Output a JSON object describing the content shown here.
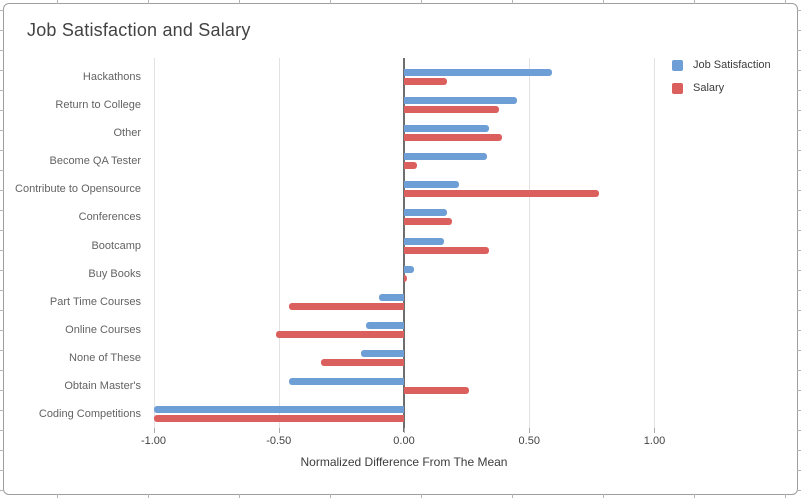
{
  "chart_data": {
    "type": "bar",
    "orientation": "horizontal",
    "title": "Job Satisfaction and Salary",
    "xlabel": "Normalized Difference From The Mean",
    "categories": [
      "Hackathons",
      "Return to College",
      "Other",
      "Become QA Tester",
      "Contribute to Opensource",
      "Conferences",
      "Bootcamp",
      "Buy Books",
      "Part Time Courses",
      "Online Courses",
      "None of These",
      "Obtain Master's",
      "Coding Competitions"
    ],
    "series": [
      {
        "name": "Job Satisfaction",
        "color": "#6d9ed5",
        "values": [
          0.59,
          0.45,
          0.34,
          0.33,
          0.22,
          0.17,
          0.16,
          0.04,
          -0.1,
          -0.15,
          -0.17,
          -0.46,
          -1.0
        ]
      },
      {
        "name": "Salary",
        "color": "#db5f5c",
        "values": [
          0.17,
          0.38,
          0.39,
          0.05,
          0.78,
          0.19,
          0.34,
          0.01,
          -0.46,
          -0.51,
          -0.33,
          0.26,
          -1.0
        ]
      }
    ],
    "xticks": [
      -1.0,
      -0.5,
      0.0,
      0.5,
      1.0
    ],
    "xtick_labels": [
      "-1.00",
      "-0.50",
      "0.00",
      "0.50",
      "1.00"
    ],
    "xlim": [
      -1.01,
      1.01
    ],
    "grid": "vertical-gridlines",
    "legend_position": "top-right"
  }
}
